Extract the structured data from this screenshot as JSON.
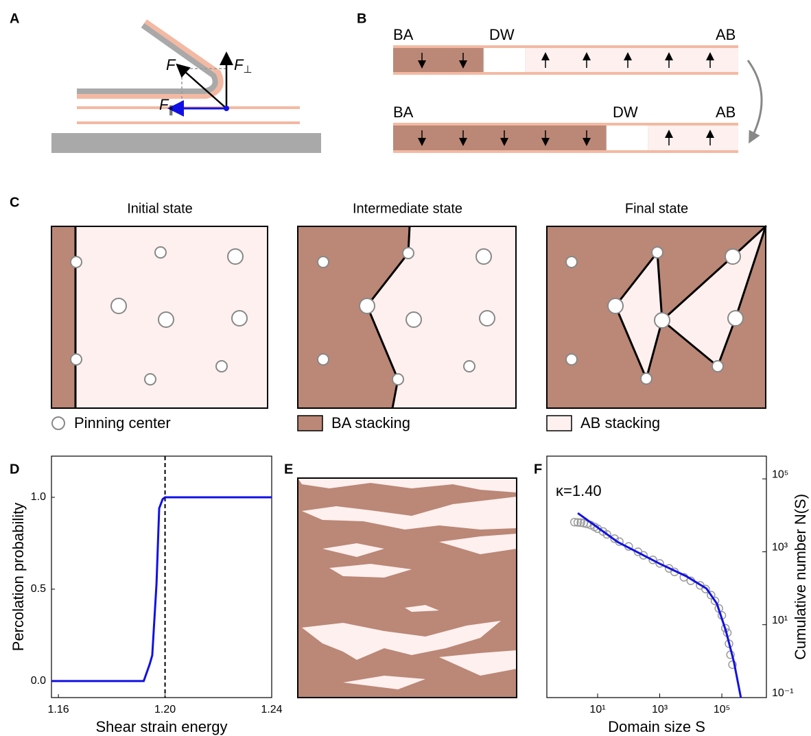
{
  "panel_labels": [
    "A",
    "B",
    "C",
    "D",
    "E",
    "F"
  ],
  "panel_a": {
    "force": "F",
    "perp": {
      "main": "F",
      "sub": "⊥"
    },
    "parallel": {
      "main": "F",
      "sub": "∥"
    }
  },
  "panel_b": {
    "rows": [
      {
        "left": "BA",
        "wall": "DW",
        "right": "AB"
      },
      {
        "left": "BA",
        "wall": "DW",
        "right": "AB"
      }
    ]
  },
  "panel_c": {
    "titles": [
      "Initial state",
      "Intermediate state",
      "Final state"
    ],
    "legend": [
      "Pinning center",
      "BA stacking",
      "AB stacking"
    ]
  },
  "chart_data": [
    {
      "type": "line",
      "xlabel": "Shear strain energy",
      "ylabel": "Percolation probability",
      "xlim": [
        1.1574,
        1.24
      ],
      "ylim": [
        -0.09,
        1.224
      ],
      "xticks": [
        1.16,
        {
          "value": 1.2,
          "label": "1.20"
        },
        1.24
      ],
      "yticks": [
        {
          "value": 0,
          "label": "0.0"
        },
        0.5,
        {
          "value": 1,
          "label": "1.0"
        }
      ],
      "x": [
        1.1574,
        1.192,
        1.1942,
        1.1952,
        1.1968,
        1.1978,
        1.1991,
        1.2,
        1.24
      ],
      "values": [
        0,
        0,
        0.09,
        0.14,
        0.53,
        0.94,
        0.99,
        1,
        1
      ],
      "color": "#1010e6",
      "vline": 1.2
    },
    {
      "type": "scatter",
      "xlabel": "Domain size S",
      "ylabel": "Cumulative number N(S)",
      "annotation": "κ=1.40",
      "log_x": true,
      "log_y": true,
      "xlim": [
        0.232,
        2720000
      ],
      "ylim": [
        0.1,
        420000
      ],
      "xticks": [
        {
          "value": 10,
          "label": "10¹"
        },
        {
          "value": 1000,
          "label": "10³"
        },
        {
          "value": 100000,
          "label": "10⁵"
        }
      ],
      "yticks": [
        {
          "value": 0.1,
          "label": "10⁻¹"
        },
        {
          "value": 10,
          "label": "10¹"
        },
        {
          "value": 1000,
          "label": "10³"
        },
        {
          "value": 100000,
          "label": "10⁵"
        }
      ],
      "x": [
        1.8,
        2.3,
        2.9,
        3.6,
        4.5,
        6,
        8,
        10,
        15,
        20,
        35,
        50,
        100,
        200,
        300,
        600,
        1000,
        2000,
        3000,
        6000,
        10000,
        20000,
        30000,
        45000,
        60000,
        80000,
        100000,
        130000,
        150000,
        170000,
        190000,
        220000
      ],
      "values": [
        6500,
        6400,
        6300,
        6100,
        5800,
        5400,
        4800,
        4300,
        3600,
        3000,
        2300,
        1900,
        1400,
        1000,
        800,
        600,
        480,
        350,
        280,
        200,
        160,
        120,
        95,
        65,
        45,
        28,
        18,
        8,
        6,
        3,
        1.5,
        0.8
      ],
      "marker_color": "#9a9a9a",
      "fit": {
        "x": [
          2.3,
          44,
          1000,
          7100,
          32000,
          69000,
          135000,
          245000,
          410000
        ],
        "values": [
          11500,
          1860,
          470,
          214,
          98,
          38,
          6.8,
          0.95,
          0.1
        ],
        "color": "#1010e6"
      }
    }
  ]
}
